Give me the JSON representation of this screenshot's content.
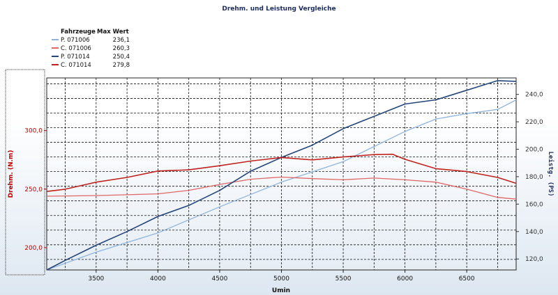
{
  "chart_data": {
    "type": "line",
    "title": "Drehm. und Leistung Vergleiche",
    "xlabel": "Umin",
    "ylabel_left": "Drehm. (N.m)",
    "ylabel_right": "Leistg. (PS)",
    "xlim": [
      3100,
      6900
    ],
    "ylim_left": [
      181,
      345
    ],
    "ylim_right": [
      112,
      252
    ],
    "x_ticks": [
      "3500",
      "4000",
      "4500",
      "5000",
      "5500",
      "6000",
      "6500"
    ],
    "y_left_ticks": [
      "200,0",
      "250,0",
      "300,0"
    ],
    "y_right_ticks": [
      "120,0",
      "140,0",
      "160,0",
      "180,0",
      "200,0",
      "220,0",
      "240,0"
    ],
    "grid": true,
    "legend": {
      "headers": [
        "Fahrzeuge",
        "Max Wert"
      ],
      "placement": "top-left"
    },
    "series": [
      {
        "name": "P. 071006",
        "max": "236,1",
        "axis": "right",
        "color": "#8fb4dc",
        "x": [
          3100,
          3500,
          4000,
          4500,
          5000,
          5500,
          6000,
          6250,
          6500,
          6750,
          6900
        ],
        "y": [
          112,
          125,
          139,
          158,
          176,
          191,
          213,
          222,
          226,
          229,
          236
        ]
      },
      {
        "name": "C. 071006",
        "max": "260,3",
        "axis": "left",
        "color": "#e06666",
        "x": [
          3100,
          3500,
          4000,
          4250,
          4500,
          4750,
          5000,
          5250,
          5500,
          5750,
          6000,
          6250,
          6500,
          6750,
          6900
        ],
        "y": [
          244,
          244.5,
          246,
          249,
          254,
          258.5,
          260.3,
          259,
          258,
          259.5,
          258,
          256,
          250,
          243,
          241.5
        ]
      },
      {
        "name": "P. 071014",
        "max": "250,4",
        "axis": "right",
        "color": "#23457a",
        "x": [
          3100,
          3250,
          3500,
          3750,
          4000,
          4250,
          4500,
          4750,
          5000,
          5250,
          5500,
          5750,
          6000,
          6250,
          6500,
          6750,
          6900
        ],
        "y": [
          112,
          119,
          130,
          140,
          151,
          159,
          170,
          184,
          194,
          203,
          215,
          224,
          233,
          236,
          243,
          250,
          249.5
        ]
      },
      {
        "name": "C. 071014",
        "max": "279,8",
        "axis": "left",
        "color": "#c0221f",
        "x": [
          3100,
          3250,
          3500,
          3750,
          4000,
          4250,
          4500,
          4750,
          5000,
          5250,
          5500,
          5750,
          5900,
          6000,
          6250,
          6500,
          6750,
          6900
        ],
        "y": [
          248,
          250,
          256,
          260,
          265.5,
          266.5,
          270,
          274,
          277,
          275,
          277.5,
          279.5,
          279.8,
          275.5,
          267.5,
          265,
          260,
          255
        ]
      }
    ]
  }
}
